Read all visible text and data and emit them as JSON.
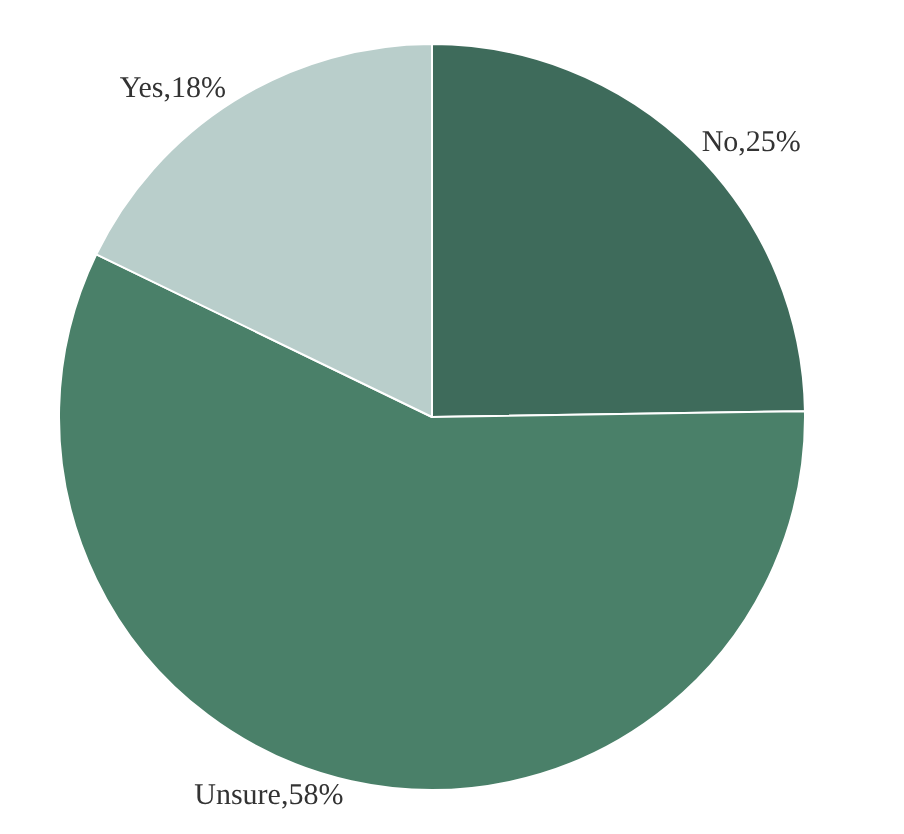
{
  "chart_data": {
    "type": "pie",
    "categories": [
      "No,25%",
      "Unsure,58%",
      "Yes,18%"
    ],
    "values": [
      25,
      58,
      18
    ],
    "colors": [
      "#3e6b5b",
      "#4a8069",
      "#b9cecb"
    ],
    "legend": false
  }
}
